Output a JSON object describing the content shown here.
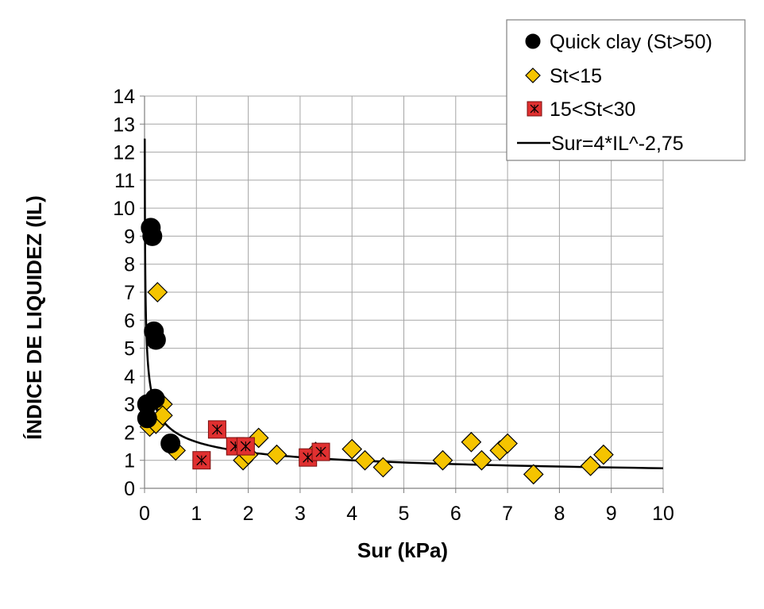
{
  "chart_data": {
    "type": "scatter",
    "title": "",
    "xlabel": "Sur (kPa)",
    "ylabel": "ÍNDICE DE LIQUIDEZ  (IL)",
    "xlim": [
      0,
      10
    ],
    "ylim": [
      0,
      14
    ],
    "x_ticks": [
      "0",
      "1",
      "2",
      "3",
      "4",
      "5",
      "6",
      "7",
      "8",
      "9",
      "10"
    ],
    "y_ticks": [
      "0",
      "1",
      "2",
      "3",
      "4",
      "5",
      "6",
      "7",
      "8",
      "9",
      "10",
      "11",
      "12",
      "13",
      "14"
    ],
    "grid": true,
    "legend_position": "top-right",
    "series": [
      {
        "name": "Quick clay (St>50)",
        "marker": "circle",
        "color": "#000000",
        "points": [
          [
            0.12,
            9.3
          ],
          [
            0.15,
            9.0
          ],
          [
            0.18,
            5.6
          ],
          [
            0.22,
            5.3
          ],
          [
            0.05,
            3.0
          ],
          [
            0.2,
            3.2
          ],
          [
            0.05,
            2.5
          ],
          [
            0.5,
            1.6
          ]
        ]
      },
      {
        "name": "St<15",
        "marker": "diamond",
        "color": "#F5C400",
        "points": [
          [
            0.25,
            7.0
          ],
          [
            0.1,
            2.2
          ],
          [
            0.22,
            2.3
          ],
          [
            0.35,
            3.0
          ],
          [
            0.35,
            2.6
          ],
          [
            0.6,
            1.35
          ],
          [
            1.9,
            1.0
          ],
          [
            2.0,
            1.2
          ],
          [
            2.2,
            1.8
          ],
          [
            2.55,
            1.2
          ],
          [
            3.3,
            1.3
          ],
          [
            4.0,
            1.4
          ],
          [
            4.25,
            1.0
          ],
          [
            4.6,
            0.75
          ],
          [
            5.75,
            1.0
          ],
          [
            6.3,
            1.65
          ],
          [
            6.5,
            1.0
          ],
          [
            6.85,
            1.35
          ],
          [
            7.0,
            1.6
          ],
          [
            7.5,
            0.5
          ],
          [
            8.6,
            0.8
          ],
          [
            8.85,
            1.2
          ]
        ]
      },
      {
        "name": "15<St<30",
        "marker": "square-x",
        "color": "#E03030",
        "points": [
          [
            1.1,
            1.0
          ],
          [
            1.4,
            2.1
          ],
          [
            1.75,
            1.5
          ],
          [
            1.95,
            1.5
          ],
          [
            3.15,
            1.1
          ],
          [
            3.4,
            1.3
          ]
        ]
      },
      {
        "name": "Sur=4*IL^-2,75",
        "marker": "line",
        "color": "#000000",
        "equation": "Sur=4*IL^-2.75"
      }
    ]
  }
}
